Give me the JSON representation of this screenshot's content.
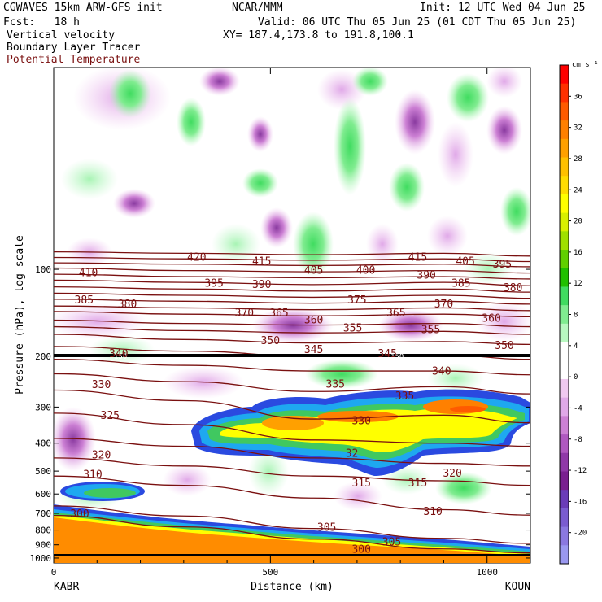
{
  "header": {
    "model": "CGWAVES 15km ARW-GFS init",
    "org": "NCAR/MMM",
    "init": "Init: 12 UTC Wed 04 Jun 25",
    "fcst": "Fcst:   18 h",
    "valid": "Valid: 06 UTC Thu 05 Jun 25 (01 CDT Thu 05 Jun 25)",
    "field1": "Vertical velocity",
    "field2": "Boundary Layer Tracer",
    "field3": "Potential Temperature",
    "xy": "XY= 187.4,173.8 to 191.8,100.1"
  },
  "colors": {
    "theta": "#7a1010",
    "tracer": "#000000",
    "ground": "#ff8c00"
  },
  "chart_data": {
    "type": "heatmap",
    "xlabel": "Distance (km)",
    "ylabel": "Pressure (hPa), log scale",
    "xlim": [
      0,
      1100
    ],
    "ylim": [
      1040,
      20
    ],
    "y_scale": "log",
    "x_ticks": [
      "0",
      "500",
      "1000"
    ],
    "x_tick_values": [
      0,
      500,
      1000
    ],
    "y_ticks": [
      "100",
      "200",
      "300",
      "400",
      "500",
      "600",
      "700",
      "800",
      "900",
      "1000"
    ],
    "y_tick_values": [
      100,
      200,
      300,
      400,
      500,
      600,
      700,
      800,
      900,
      1000
    ],
    "endpoints": {
      "left": "KABR",
      "right": "KOUN"
    },
    "colorbar": {
      "unit": "cm s⁻¹",
      "labels": [
        "36",
        "32",
        "28",
        "24",
        "20",
        "16",
        "12",
        "8",
        "4",
        "0",
        "-4",
        "-8",
        "-12",
        "-16",
        "-20"
      ],
      "label_values": [
        36,
        32,
        28,
        24,
        20,
        16,
        12,
        8,
        4,
        0,
        -4,
        -8,
        -12,
        -16,
        -20
      ],
      "colors": [
        "#ff0000",
        "#ff3000",
        "#ff5a00",
        "#ff8000",
        "#ffa000",
        "#ffc000",
        "#ffdc00",
        "#ffff00",
        "#d8f000",
        "#a0e000",
        "#60d000",
        "#20c000",
        "#40dc60",
        "#80ec90",
        "#b8f8c0",
        "#ffffff",
        "#ffffff",
        "#f0c8f0",
        "#e0a8e8",
        "#cc80d4",
        "#b058c0",
        "#9038a8",
        "#7a1f90",
        "#6a3cb8",
        "#7a5cd0",
        "#8a78e0",
        "#9a98f0"
      ]
    },
    "theta_contours": [
      {
        "value": 300,
        "points": [
          [
            0,
            712
          ],
          [
            300,
            780
          ],
          [
            600,
            860
          ],
          [
            900,
            930
          ],
          [
            1100,
            960
          ]
        ]
      },
      {
        "value": 305,
        "points": [
          [
            0,
            660
          ],
          [
            300,
            715
          ],
          [
            600,
            790
          ],
          [
            900,
            855
          ],
          [
            1100,
            890
          ]
        ]
      },
      {
        "value": 310,
        "points": [
          [
            0,
            520
          ],
          [
            300,
            560
          ],
          [
            600,
            620
          ],
          [
            900,
            680
          ],
          [
            1100,
            710
          ]
        ]
      },
      {
        "value": 315,
        "points": [
          [
            0,
            450
          ],
          [
            300,
            480
          ],
          [
            600,
            520
          ],
          [
            900,
            540
          ],
          [
            1100,
            560
          ]
        ]
      },
      {
        "value": 320,
        "points": [
          [
            0,
            385
          ],
          [
            300,
            410
          ],
          [
            600,
            450
          ],
          [
            900,
            470
          ],
          [
            1100,
            480
          ]
        ]
      },
      {
        "value": 325,
        "points": [
          [
            0,
            315
          ],
          [
            300,
            345
          ],
          [
            600,
            390
          ],
          [
            900,
            400
          ],
          [
            1100,
            410
          ]
        ]
      },
      {
        "value": 330,
        "points": [
          [
            0,
            262
          ],
          [
            300,
            285
          ],
          [
            600,
            330
          ],
          [
            900,
            320
          ],
          [
            1100,
            340
          ]
        ]
      },
      {
        "value": 335,
        "points": [
          [
            0,
            230
          ],
          [
            300,
            245
          ],
          [
            600,
            265
          ],
          [
            900,
            255
          ],
          [
            1100,
            270
          ]
        ]
      },
      {
        "value": 340,
        "points": [
          [
            0,
            205
          ],
          [
            300,
            215
          ],
          [
            600,
            225
          ],
          [
            900,
            225
          ],
          [
            1100,
            232
          ]
        ]
      },
      {
        "value": 345,
        "points": [
          [
            0,
            185
          ],
          [
            300,
            192
          ],
          [
            600,
            200
          ],
          [
            900,
            198
          ],
          [
            1100,
            205
          ]
        ]
      },
      {
        "value": 350,
        "points": [
          [
            0,
            168
          ],
          [
            300,
            175
          ],
          [
            600,
            180
          ],
          [
            900,
            178
          ],
          [
            1100,
            182
          ]
        ]
      },
      {
        "value": 355,
        "points": [
          [
            0,
            158
          ],
          [
            300,
            163
          ],
          [
            600,
            166
          ],
          [
            900,
            164
          ],
          [
            1100,
            168
          ]
        ]
      },
      {
        "value": 360,
        "points": [
          [
            0,
            150
          ],
          [
            300,
            154
          ],
          [
            600,
            156
          ],
          [
            900,
            154
          ],
          [
            1100,
            158
          ]
        ]
      },
      {
        "value": 370,
        "points": [
          [
            0,
            140
          ],
          [
            300,
            143
          ],
          [
            600,
            145
          ],
          [
            900,
            143
          ],
          [
            1100,
            146
          ]
        ]
      },
      {
        "value": 375,
        "points": [
          [
            0,
            134
          ],
          [
            300,
            136
          ],
          [
            600,
            138
          ],
          [
            900,
            136
          ],
          [
            1100,
            139
          ]
        ]
      },
      {
        "value": 380,
        "points": [
          [
            0,
            127
          ],
          [
            300,
            129
          ],
          [
            600,
            131
          ],
          [
            900,
            129
          ],
          [
            1100,
            132
          ]
        ]
      },
      {
        "value": 385,
        "points": [
          [
            0,
            121
          ],
          [
            300,
            123
          ],
          [
            600,
            125
          ],
          [
            900,
            123
          ],
          [
            1100,
            126
          ]
        ]
      },
      {
        "value": 390,
        "points": [
          [
            0,
            115
          ],
          [
            300,
            117
          ],
          [
            600,
            119
          ],
          [
            900,
            117
          ],
          [
            1100,
            120
          ]
        ]
      },
      {
        "value": 395,
        "points": [
          [
            0,
            109
          ],
          [
            300,
            111
          ],
          [
            600,
            113
          ],
          [
            900,
            111
          ],
          [
            1100,
            114
          ]
        ]
      },
      {
        "value": 400,
        "points": [
          [
            0,
            104
          ],
          [
            300,
            106
          ],
          [
            600,
            107
          ],
          [
            900,
            106
          ],
          [
            1100,
            108
          ]
        ]
      },
      {
        "value": 405,
        "points": [
          [
            0,
            99
          ],
          [
            300,
            101
          ],
          [
            600,
            102
          ],
          [
            900,
            101
          ],
          [
            1100,
            103
          ]
        ]
      },
      {
        "value": 410,
        "points": [
          [
            0,
            95
          ],
          [
            300,
            96
          ],
          [
            600,
            97
          ],
          [
            900,
            96
          ],
          [
            1100,
            98
          ]
        ]
      },
      {
        "value": 415,
        "points": [
          [
            0,
            91
          ],
          [
            300,
            92
          ],
          [
            600,
            93
          ],
          [
            900,
            92
          ],
          [
            1100,
            94
          ]
        ]
      },
      {
        "value": 420,
        "points": [
          [
            0,
            87
          ],
          [
            300,
            88
          ],
          [
            600,
            89
          ],
          [
            900,
            88
          ],
          [
            1100,
            90
          ]
        ]
      }
    ],
    "theta_labels": [
      {
        "text": "420",
        "x": 330,
        "p": 91
      },
      {
        "text": "415",
        "x": 480,
        "p": 94
      },
      {
        "text": "405",
        "x": 600,
        "p": 101
      },
      {
        "text": "400",
        "x": 720,
        "p": 101
      },
      {
        "text": "415",
        "x": 840,
        "p": 91
      },
      {
        "text": "405",
        "x": 950,
        "p": 94
      },
      {
        "text": "395",
        "x": 1035,
        "p": 96
      },
      {
        "text": "410",
        "x": 80,
        "p": 103
      },
      {
        "text": "395",
        "x": 370,
        "p": 112
      },
      {
        "text": "390",
        "x": 480,
        "p": 113
      },
      {
        "text": "390",
        "x": 860,
        "p": 105
      },
      {
        "text": "385",
        "x": 940,
        "p": 112
      },
      {
        "text": "380",
        "x": 1060,
        "p": 116
      },
      {
        "text": "385",
        "x": 70,
        "p": 128
      },
      {
        "text": "380",
        "x": 170,
        "p": 132
      },
      {
        "text": "375",
        "x": 700,
        "p": 128
      },
      {
        "text": "370",
        "x": 900,
        "p": 132
      },
      {
        "text": "370",
        "x": 440,
        "p": 142
      },
      {
        "text": "365",
        "x": 520,
        "p": 142
      },
      {
        "text": "365",
        "x": 790,
        "p": 142
      },
      {
        "text": "360",
        "x": 600,
        "p": 150
      },
      {
        "text": "360",
        "x": 1010,
        "p": 148
      },
      {
        "text": "355",
        "x": 690,
        "p": 160
      },
      {
        "text": "355",
        "x": 870,
        "p": 162
      },
      {
        "text": "350",
        "x": 500,
        "p": 177
      },
      {
        "text": "350",
        "x": 1040,
        "p": 184
      },
      {
        "text": "345",
        "x": 600,
        "p": 190
      },
      {
        "text": "345",
        "x": 770,
        "p": 196
      },
      {
        "text": "340",
        "x": 150,
        "p": 196
      },
      {
        "text": "340",
        "x": 895,
        "p": 226
      },
      {
        "text": "335",
        "x": 650,
        "p": 250
      },
      {
        "text": "335",
        "x": 810,
        "p": 275
      },
      {
        "text": "330",
        "x": 110,
        "p": 251
      },
      {
        "text": "330",
        "x": 710,
        "p": 335
      },
      {
        "text": "325",
        "x": 130,
        "p": 321
      },
      {
        "text": "320",
        "x": 110,
        "p": 440
      },
      {
        "text": "320",
        "x": 920,
        "p": 510
      },
      {
        "text": "315",
        "x": 710,
        "p": 550
      },
      {
        "text": "315",
        "x": 840,
        "p": 550
      },
      {
        "text": "310",
        "x": 90,
        "p": 515
      },
      {
        "text": "310",
        "x": 875,
        "p": 690
      },
      {
        "text": "305",
        "x": 630,
        "p": 785
      },
      {
        "text": "305",
        "x": 780,
        "p": 880
      },
      {
        "text": "300",
        "x": 60,
        "p": 705
      },
      {
        "text": "300",
        "x": 710,
        "p": 935
      },
      {
        "text": "32",
        "x": 688,
        "p": 435
      }
    ],
    "tracer_label": {
      "text": "150",
      "x": 155,
      "p": 146
    },
    "tracer_label2": {
      "text": "150",
      "x": 810,
      "p": 145
    }
  }
}
